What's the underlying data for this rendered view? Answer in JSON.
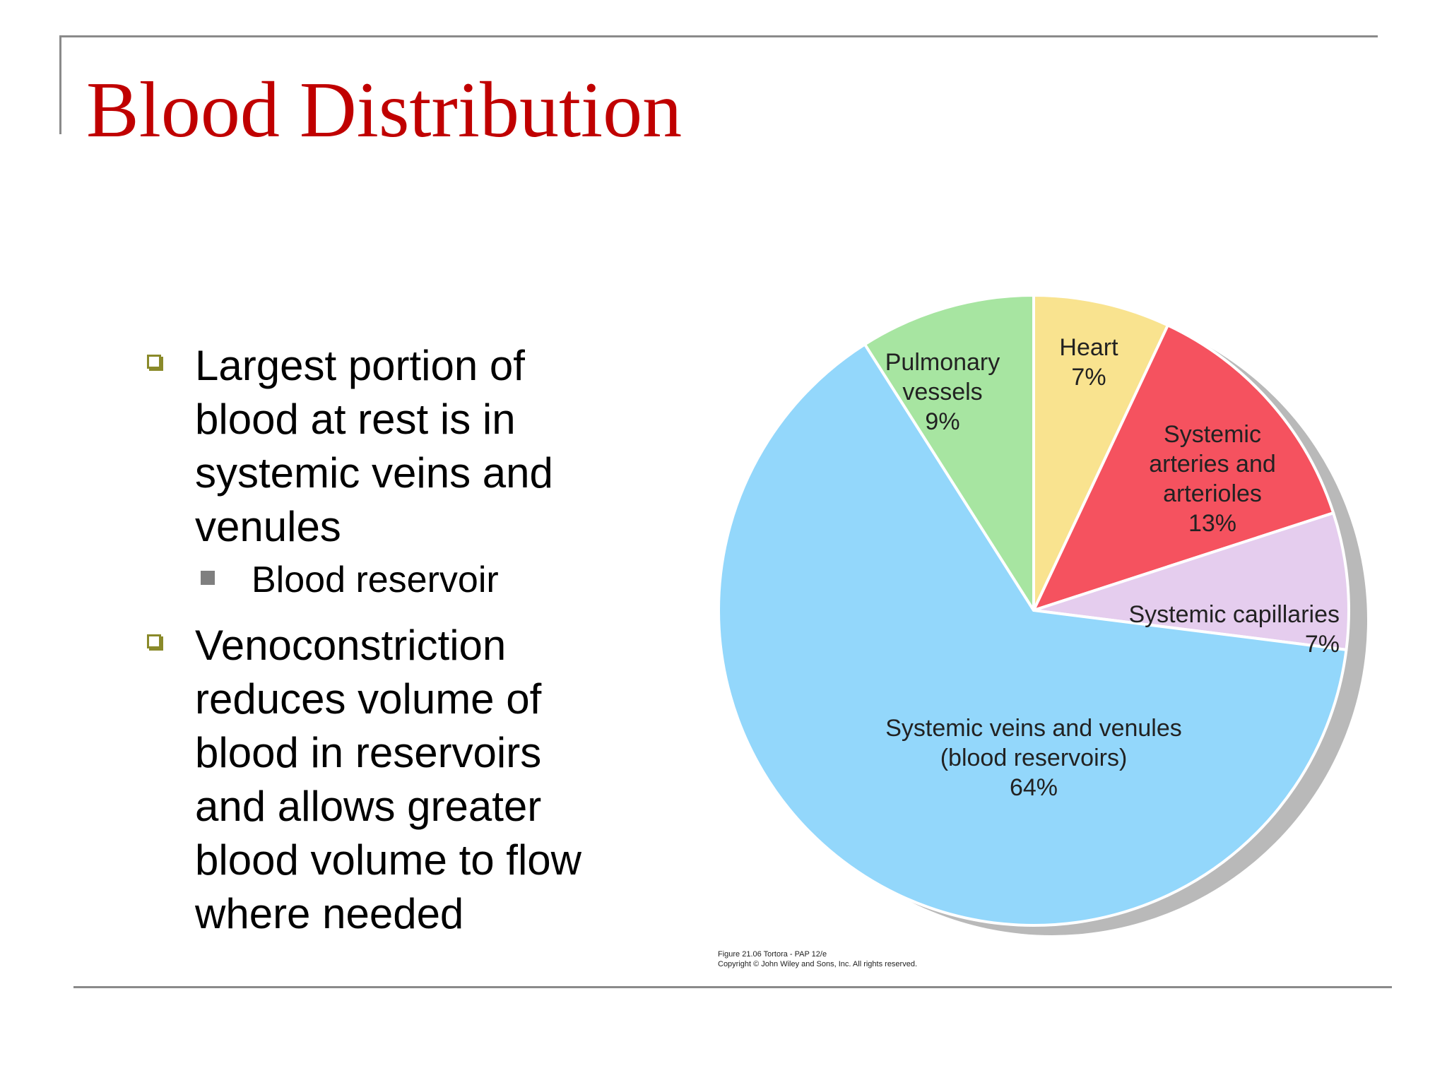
{
  "slide": {
    "title": "Blood Distribution"
  },
  "bullets": [
    {
      "text": "Largest portion of blood at rest is in systemic veins and venules",
      "level": 1
    },
    {
      "text": "Blood reservoir",
      "level": 2
    },
    {
      "text": "Venoconstriction reduces volume of blood in reservoirs and allows greater blood volume to flow where needed",
      "level": 1
    }
  ],
  "caption": {
    "line1": "Figure 21.06  Tortora - PAP 12/e",
    "line2": "Copyright © John Wiley and Sons, Inc. All rights reserved."
  },
  "chart_data": {
    "type": "pie",
    "title": "",
    "start_angle_deg": 0,
    "direction": "clockwise",
    "slices": [
      {
        "name": "Heart",
        "label_lines": [
          "Heart",
          "7%"
        ],
        "value": 7,
        "color": "#f9e38f"
      },
      {
        "name": "Systemic arteries and arterioles",
        "label_lines": [
          "Systemic",
          "arteries and",
          "arterioles",
          "13%"
        ],
        "value": 13,
        "color": "#f5525f"
      },
      {
        "name": "Systemic capillaries",
        "label_lines": [
          "Systemic capillaries",
          "7%"
        ],
        "value": 7,
        "color": "#e5cdee"
      },
      {
        "name": "Systemic veins and venules (blood reservoirs)",
        "label_lines": [
          "Systemic veins and venules",
          "(blood reservoirs)",
          "64%"
        ],
        "value": 64,
        "color": "#93d7fb"
      },
      {
        "name": "Pulmonary vessels",
        "label_lines": [
          "Pulmonary",
          "vessels",
          "9%"
        ],
        "value": 9,
        "color": "#a7e5a1"
      }
    ],
    "shadow_color": "#b9b9b9",
    "edge_color": "#ffffff"
  }
}
